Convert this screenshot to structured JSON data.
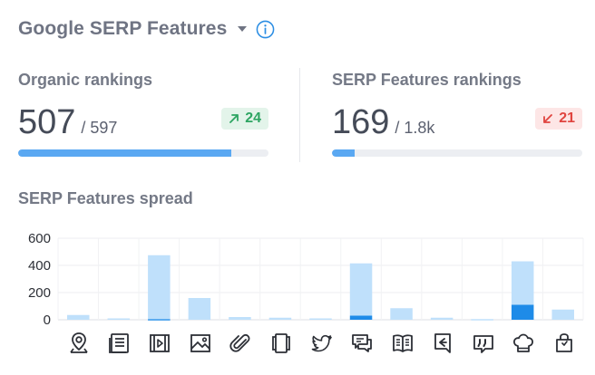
{
  "header": {
    "title": "Google SERP Features"
  },
  "organic": {
    "label": "Organic rankings",
    "value": "507",
    "total": "/ 597",
    "delta": "24",
    "delta_direction": "up",
    "progress": 0.85
  },
  "serp": {
    "label": "SERP Features rankings",
    "value": "169",
    "total": "/ 1.8k",
    "delta": "21",
    "delta_direction": "down",
    "progress": 0.09
  },
  "spread": {
    "title": "SERP Features spread"
  },
  "colors": {
    "accent": "#5aa8f2",
    "light_bar": "#bfe0fb",
    "dark_bar": "#1e8be8",
    "up": "#2da562",
    "down": "#e0443f"
  },
  "chart_data": {
    "type": "bar",
    "categories": [
      "local-pack",
      "top-stories",
      "videos",
      "images",
      "sitelinks",
      "knowledge-panel",
      "twitter",
      "people-also-ask",
      "featured-snippet",
      "thumbnail",
      "reviews",
      "recipes",
      "shopping"
    ],
    "series": [
      {
        "values": [
          0,
          0,
          5,
          0,
          0,
          0,
          0,
          30,
          0,
          0,
          0,
          110,
          0
        ]
      },
      {
        "values": [
          35,
          10,
          470,
          160,
          20,
          15,
          10,
          385,
          85,
          15,
          5,
          320,
          75
        ]
      }
    ],
    "stacked": true,
    "ylim": [
      0,
      600
    ],
    "yticks": [
      "600",
      "400",
      "200",
      "0"
    ],
    "grid": true
  },
  "icons": [
    "location-pin-icon",
    "top-stories-icon",
    "video-icon",
    "image-icon",
    "sitelinks-icon",
    "knowledge-panel-icon",
    "twitter-icon",
    "people-also-ask-icon",
    "featured-snippet-icon",
    "thumbnail-icon",
    "reviews-icon",
    "recipes-icon",
    "shopping-icon"
  ]
}
